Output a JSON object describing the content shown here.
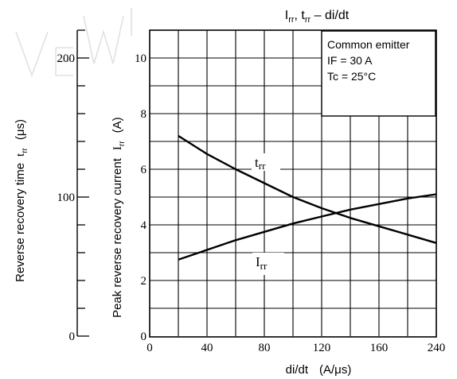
{
  "chart_data": {
    "type": "line",
    "title_parts": {
      "I": "I",
      "rr1": "rr",
      "sep1": ", t",
      "rr2": "rr",
      "rest": " – di/dt"
    },
    "xlabel_parts": {
      "main": "di/dt",
      "unit": "(A/μs)"
    },
    "x_ticks": [
      "0",
      "40",
      "80",
      "120",
      "160",
      "240"
    ],
    "x_tick_values": [
      0,
      40,
      80,
      120,
      160,
      240
    ],
    "xlim": [
      0,
      200
    ],
    "y_right": {
      "label_parts": {
        "main": "Peak reverse recovery current",
        "sym": "I",
        "sub": "rr",
        "unit": "(A)"
      },
      "ticks": [
        "0",
        "2",
        "4",
        "6",
        "8",
        "10"
      ],
      "tick_values": [
        0,
        2,
        4,
        6,
        8,
        10
      ],
      "ylim": [
        0,
        11
      ]
    },
    "y_left": {
      "label_parts": {
        "main": "Reverse recovery time",
        "sym": "t",
        "sub": "rr",
        "unit": "(μs)"
      },
      "ticks": [
        "0",
        "100",
        "200"
      ],
      "tick_values": [
        0,
        100,
        200
      ],
      "ylim": [
        0,
        220
      ]
    },
    "legend_box": [
      "Common emitter",
      "IF = 30 A",
      "Tc = 25°C"
    ],
    "series": [
      {
        "name": "trr",
        "label_main": "t",
        "label_sub": "rr",
        "axis": "left",
        "x": [
          20,
          40,
          60,
          80,
          100,
          120,
          140,
          160,
          180,
          200
        ],
        "values": [
          144,
          131,
          120,
          110,
          100,
          92,
          85,
          79,
          73,
          67
        ]
      },
      {
        "name": "Irr",
        "label_main": "I",
        "label_sub": "rr",
        "axis": "right",
        "x": [
          20,
          40,
          60,
          80,
          100,
          120,
          140,
          160,
          180,
          200
        ],
        "values": [
          2.75,
          3.1,
          3.45,
          3.75,
          4.05,
          4.3,
          4.55,
          4.75,
          4.95,
          5.1
        ]
      }
    ],
    "grid": true,
    "legend_position": "top-right"
  }
}
